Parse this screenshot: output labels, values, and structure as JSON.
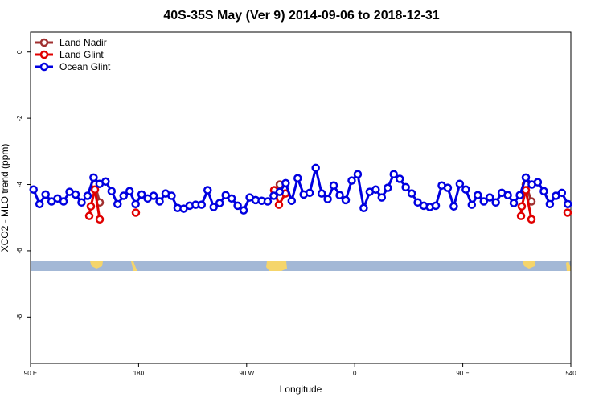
{
  "chart_data": {
    "type": "line",
    "title": "40S-35S May (Ver 9)   2014-09-06 to 2018-12-31",
    "xlabel": "Longitude",
    "ylabel": "XCO2 - MLO trend (ppm)",
    "xlim": [
      90,
      540
    ],
    "xticks": [
      {
        "value": 90,
        "label": "90 E"
      },
      180,
      {
        "value": 270,
        "label": "90 W"
      },
      {
        "value": 360,
        "label": "0"
      },
      {
        "value": 450,
        "label": "90 E"
      },
      540
    ],
    "ylim": [
      -9.4,
      0.6
    ],
    "yticks": [
      0,
      -2,
      -4,
      -6,
      -8
    ],
    "legend": "upper left",
    "series": [
      {
        "name": "Land Nadir",
        "color": "#a03030",
        "x": [
          143.6,
          147.6,
          220,
          292.9,
          297.6,
          400,
          502.5,
          507.2
        ],
        "values": [
          -4.0,
          -4.54,
          null,
          -4.32,
          -4.0,
          null,
          -4.0,
          -4.51
        ]
      },
      {
        "name": "Land Glint",
        "color": "#e00000",
        "x": [
          138.9,
          140.2,
          143.6,
          147.6,
          160,
          177.7,
          230,
          292.9,
          296.9,
          302.3,
          400,
          498.5,
          499.1,
          502.5,
          507.2,
          520,
          537.3
        ],
        "values": [
          -4.95,
          -4.66,
          -4.15,
          -5.05,
          null,
          -4.85,
          null,
          -4.17,
          -4.61,
          -4.27,
          null,
          -4.95,
          -4.66,
          -4.17,
          -5.05,
          null,
          -4.85
        ]
      },
      {
        "name": "Ocean Glint",
        "color": "#0000e0",
        "x": [
          92.5,
          97.5,
          102.5,
          107.5,
          112.5,
          117.5,
          122.5,
          127.5,
          132.5,
          137.5,
          142.5,
          147.5,
          152.5,
          157.5,
          162.5,
          167.5,
          172.5,
          177.5,
          182.5,
          187.5,
          192.5,
          197.5,
          202.5,
          207.5,
          212.5,
          217.5,
          222.5,
          227.5,
          232.5,
          237.5,
          242.5,
          247.5,
          252.5,
          257.5,
          262.5,
          267.5,
          272.5,
          277.5,
          282.5,
          287.5,
          292.5,
          297.5,
          302.5,
          307.5,
          312.5,
          317.5,
          322.5,
          327.5,
          332.5,
          337.5,
          342.5,
          347.5,
          352.5,
          357.5,
          362.5,
          367.5,
          372.5,
          377.5,
          382.5,
          387.5,
          392.5,
          397.5,
          402.5,
          407.5,
          412.5,
          417.5,
          422.5,
          427.5,
          432.5,
          437.5,
          442.5,
          447.5,
          452.5,
          457.5,
          462.5,
          467.5,
          472.5,
          477.5,
          482.5,
          487.5,
          492.5,
          497.5,
          502.5,
          507.5,
          512.5,
          517.5,
          522.5,
          527.5,
          532.5,
          537.5
        ],
        "values": [
          -4.15,
          -4.59,
          -4.3,
          -4.51,
          -4.42,
          -4.51,
          -4.22,
          -4.3,
          -4.54,
          -4.34,
          -3.79,
          -3.98,
          -3.91,
          -4.2,
          -4.59,
          -4.34,
          -4.2,
          -4.59,
          -4.3,
          -4.42,
          -4.34,
          -4.51,
          -4.27,
          -4.34,
          -4.71,
          -4.73,
          -4.64,
          -4.61,
          -4.61,
          -4.17,
          -4.68,
          -4.56,
          -4.32,
          -4.42,
          -4.64,
          -4.78,
          -4.39,
          -4.47,
          -4.49,
          -4.51,
          -4.34,
          -4.22,
          -3.96,
          -4.49,
          -3.81,
          -4.3,
          -4.25,
          -3.5,
          -4.27,
          -4.44,
          -4.03,
          -4.32,
          -4.47,
          -3.88,
          -3.69,
          -4.71,
          -4.22,
          -4.15,
          -4.39,
          -4.1,
          -3.69,
          -3.83,
          -4.08,
          -4.27,
          -4.54,
          -4.64,
          -4.68,
          -4.64,
          -4.03,
          -4.1,
          -4.66,
          -3.98,
          -4.15,
          -4.61,
          -4.32,
          -4.51,
          -4.39,
          -4.54,
          -4.25,
          -4.32,
          -4.56,
          -4.32,
          -3.79,
          -4.0,
          -3.93,
          -4.2,
          -4.59,
          -4.34,
          -4.25,
          -4.59
        ]
      }
    ]
  }
}
